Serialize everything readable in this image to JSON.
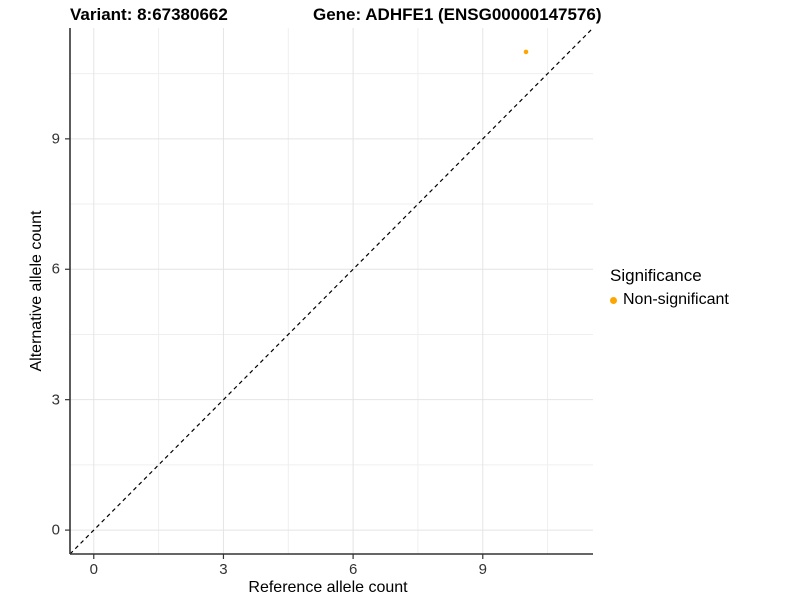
{
  "header": {
    "title_left": "Variant: 8:67380662",
    "title_right": "Gene: ADHFE1 (ENSG00000147576)"
  },
  "chart_data": {
    "type": "scatter",
    "xlabel": "Reference allele count",
    "ylabel": "Alternative allele count",
    "xlim": [
      -0.55,
      11.55
    ],
    "ylim": [
      -0.55,
      11.55
    ],
    "x_ticks": [
      0,
      3,
      6,
      9
    ],
    "y_ticks": [
      0,
      3,
      6,
      9
    ],
    "x_minor_gridlines": [
      1.5,
      4.5,
      7.5,
      10.5
    ],
    "y_minor_gridlines": [
      1.5,
      4.5,
      7.5,
      10.5
    ],
    "grid": true,
    "series": [
      {
        "name": "Non-significant",
        "color": "#FFA500",
        "points": [
          {
            "x": 10,
            "y": 11
          }
        ]
      }
    ],
    "reference_line": {
      "type": "identity",
      "equation": "y = x",
      "style": "dashed",
      "color": "#000000"
    },
    "legend": {
      "title": "Significance",
      "position": "right",
      "entries": [
        {
          "label": "Non-significant",
          "color": "#FFA500"
        }
      ]
    },
    "colors": {
      "grid_major": "#e4e4e4",
      "grid_minor": "#efefef",
      "axis_line": "#333333",
      "tick_text": "#333333",
      "panel_background": "#ffffff"
    }
  }
}
